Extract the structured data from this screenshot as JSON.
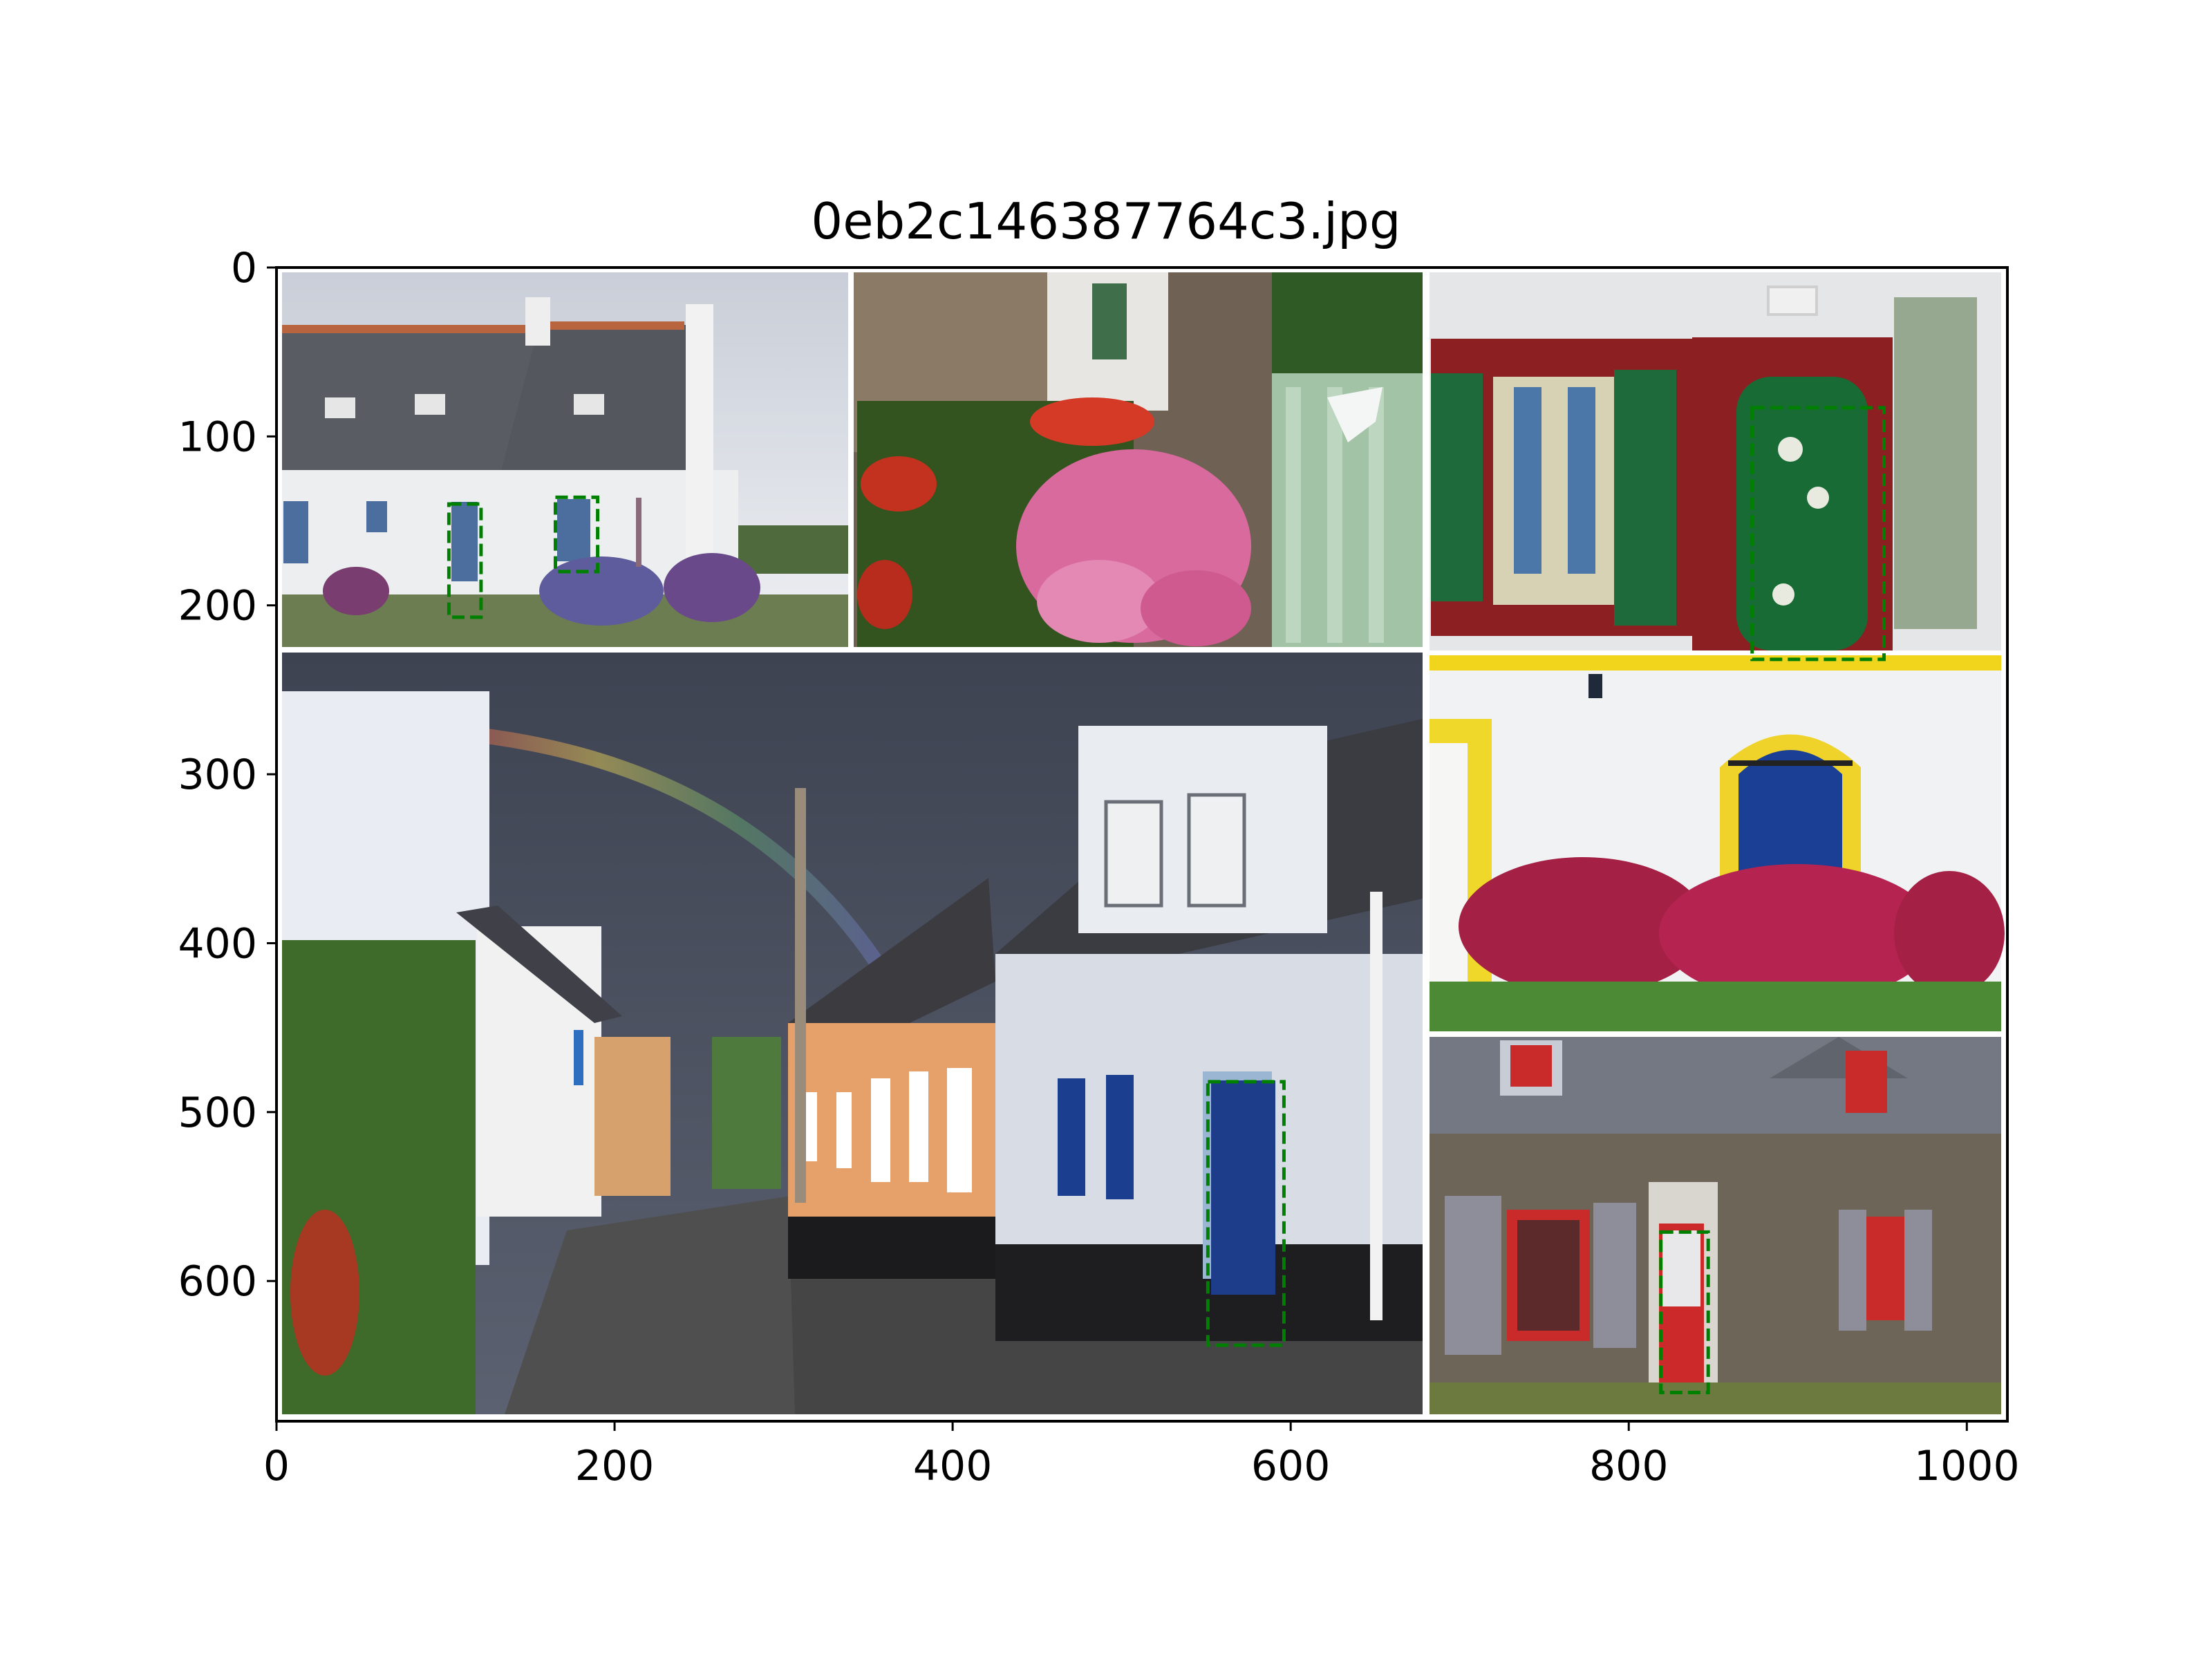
{
  "figure": {
    "title": "0eb2c146387764c3.jpg"
  },
  "chart_data": {
    "type": "image",
    "title": "0eb2c146387764c3.jpg",
    "xlim": [
      0,
      1024
    ],
    "ylim": [
      683,
      0
    ],
    "xticks": [
      0,
      200,
      400,
      600,
      800,
      1000
    ],
    "yticks": [
      0,
      100,
      200,
      300,
      400,
      500,
      600
    ],
    "grid": false,
    "image": {
      "panels": [
        {
          "name": "white-house-blue-shutters",
          "bounds": [
            3,
            338,
            3,
            225
          ]
        },
        {
          "name": "garden-pink-hydrangea",
          "bounds": [
            342,
            681,
            3,
            225
          ]
        },
        {
          "name": "red-frame-green-door",
          "bounds": [
            685,
            1021,
            3,
            227
          ]
        },
        {
          "name": "street-rainbow",
          "bounds": [
            3,
            681,
            229,
            680
          ]
        },
        {
          "name": "yellow-frame-blue-door",
          "bounds": [
            685,
            1021,
            231,
            455
          ]
        },
        {
          "name": "stone-house-red-door",
          "bounds": [
            685,
            1021,
            459,
            680
          ]
        }
      ],
      "dividers": [
        "white"
      ]
    },
    "boxes": [
      {
        "label": "door",
        "x0": 102,
        "y0": 140,
        "x1": 121,
        "y1": 207,
        "color": "#008000",
        "style": "dashed"
      },
      {
        "label": "door",
        "x0": 165,
        "y0": 136,
        "x1": 190,
        "y1": 180,
        "color": "#008000",
        "style": "dashed"
      },
      {
        "label": "door",
        "x0": 873,
        "y0": 83,
        "x1": 951,
        "y1": 232,
        "color": "#008000",
        "style": "dashed"
      },
      {
        "label": "door",
        "x0": 551,
        "y0": 482,
        "x1": 596,
        "y1": 638,
        "color": "#008000",
        "style": "dashed"
      },
      {
        "label": "door",
        "x0": 819,
        "y0": 571,
        "x1": 847,
        "y1": 666,
        "color": "#008000",
        "style": "dashed"
      }
    ]
  }
}
